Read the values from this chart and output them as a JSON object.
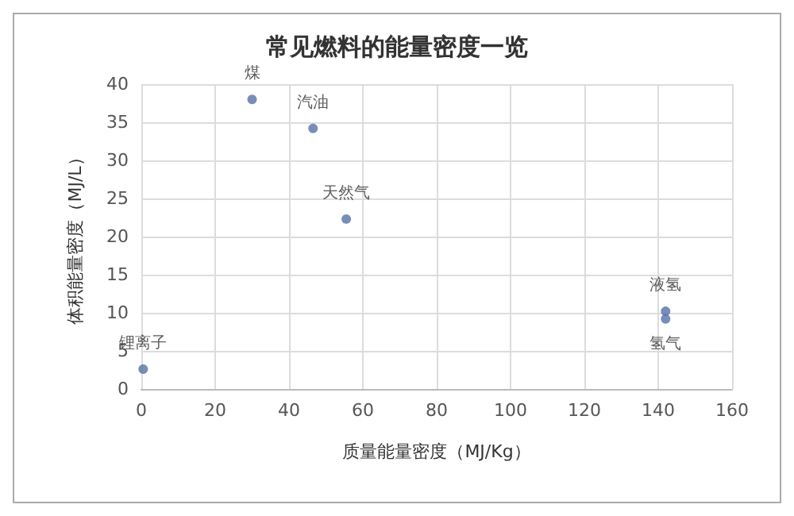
{
  "chart_data": {
    "type": "scatter",
    "title": "常见燃料的能量密度一览",
    "xlabel": "质量能量密度（MJ/Kg）",
    "ylabel": "体积能量密度（MJ/L）",
    "x": [
      0.5,
      30,
      46.5,
      55.5,
      142,
      142
    ],
    "values": [
      2.6,
      38,
      34.2,
      22.3,
      10.2,
      9.2
    ],
    "color": "#5572a8",
    "annotations": [
      {
        "text": "锂离子",
        "x": 0.5,
        "y": 2.6
      },
      {
        "text": "煤",
        "x": 30,
        "y": 38
      },
      {
        "text": "汽油",
        "x": 46.5,
        "y": 34.2
      },
      {
        "text": "天然气",
        "x": 55.5,
        "y": 22.3
      },
      {
        "text": "液氢",
        "x": 142,
        "y": 10.2
      },
      {
        "text": "氢气",
        "x": 142,
        "y": 9.2
      }
    ],
    "xlim": [
      0,
      160
    ],
    "xticks": [
      0,
      20,
      40,
      60,
      80,
      100,
      120,
      140,
      160
    ],
    "ylim": [
      0,
      40
    ],
    "yticks": [
      0,
      5,
      10,
      15,
      20,
      25,
      30,
      35,
      40
    ],
    "grid": true,
    "marker": "circle"
  }
}
